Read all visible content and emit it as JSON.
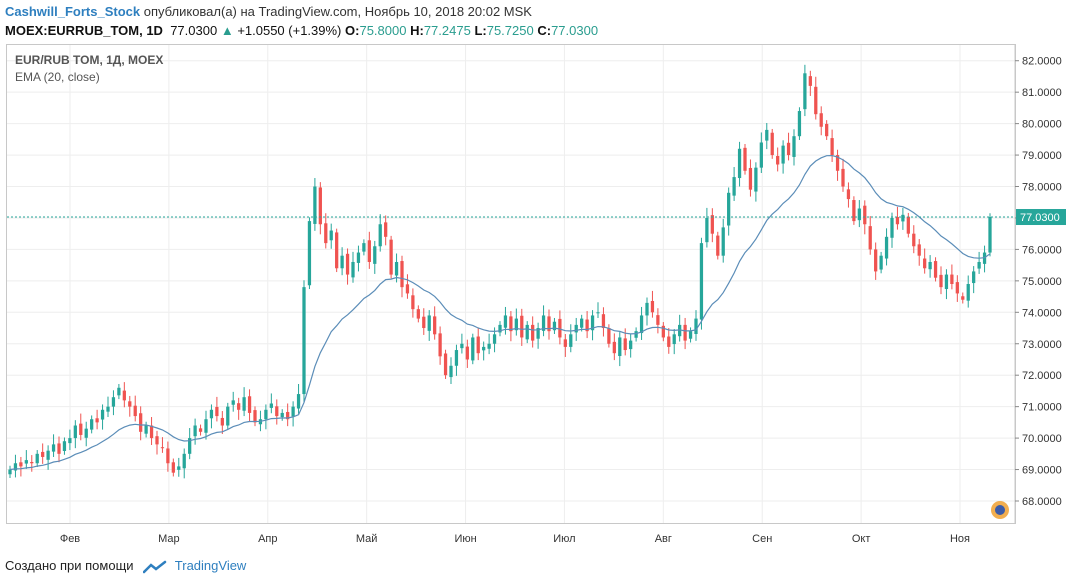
{
  "header": {
    "author": "Cashwill_Forts_Stock",
    "published": "опубликовал(а) на TradingView.com, Ноябрь 10, 2018 20:02 MSK",
    "symbol": "MOEX:EURRUB_TOM, 1D",
    "last": "77.0300",
    "change": "+1.0550 (+1.39%)",
    "o_label": "O:",
    "o_val": "75.8000",
    "h_label": "H:",
    "h_val": "77.2475",
    "l_label": "L:",
    "l_val": "75.7250",
    "c_label": "C:",
    "c_val": "77.0300"
  },
  "legend": {
    "series": "EUR/RUB TOM, 1Д, MOEX",
    "indicator": "EMA (20, close)"
  },
  "footer": {
    "created": "Создано при помощи",
    "brand": "TradingView"
  },
  "colors": {
    "up": "#26a69a",
    "down": "#ef5350",
    "ema": "#5b8db8",
    "last_line": "#26a69a"
  },
  "chart_data": {
    "type": "candlestick",
    "ylim": [
      67.3,
      82.5
    ],
    "y_ticks": [
      "68.0000",
      "69.0000",
      "70.0000",
      "71.0000",
      "72.0000",
      "73.0000",
      "74.0000",
      "75.0000",
      "76.0000",
      "77.0000",
      "78.0000",
      "79.0000",
      "80.0000",
      "81.0000",
      "82.0000"
    ],
    "x_ticks": [
      "Фев",
      "Мар",
      "Апр",
      "Май",
      "Июн",
      "Июл",
      "Авг",
      "Сен",
      "Окт",
      "Ноя"
    ],
    "last_price_label": "77.0300",
    "last_price": 77.03,
    "closes": [
      69.0,
      69.2,
      69.1,
      69.3,
      69.2,
      69.5,
      69.4,
      69.6,
      69.8,
      69.5,
      69.9,
      70.0,
      70.4,
      70.1,
      70.3,
      70.6,
      70.5,
      70.9,
      71.0,
      71.3,
      71.6,
      71.2,
      71.0,
      70.7,
      70.2,
      70.4,
      70.0,
      69.8,
      69.7,
      69.2,
      68.9,
      69.1,
      69.5,
      70.0,
      70.4,
      70.2,
      70.6,
      70.9,
      70.7,
      70.4,
      71.0,
      71.2,
      70.9,
      71.3,
      70.8,
      70.5,
      70.6,
      70.9,
      71.1,
      70.7,
      70.8,
      70.6,
      71.0,
      71.4,
      74.8,
      76.9,
      78.0,
      76.8,
      76.2,
      76.6,
      75.4,
      75.8,
      75.2,
      75.6,
      75.9,
      76.2,
      75.6,
      76.1,
      76.8,
      76.4,
      75.2,
      75.6,
      74.8,
      74.6,
      74.1,
      73.8,
      73.5,
      73.9,
      73.3,
      72.6,
      72.0,
      72.3,
      72.8,
      73.0,
      72.5,
      73.2,
      72.7,
      72.9,
      73.0,
      73.3,
      73.6,
      73.9,
      73.4,
      73.8,
      73.2,
      73.6,
      73.1,
      73.5,
      73.9,
      73.4,
      73.7,
      73.2,
      72.9,
      73.3,
      73.6,
      73.8,
      73.4,
      73.9,
      74.0,
      73.5,
      73.0,
      72.7,
      73.2,
      72.8,
      73.1,
      73.4,
      73.9,
      74.3,
      74.0,
      73.6,
      73.2,
      72.9,
      73.3,
      73.6,
      73.1,
      73.4,
      73.8,
      76.2,
      77.0,
      76.5,
      75.8,
      76.7,
      77.8,
      78.3,
      79.2,
      78.5,
      77.9,
      78.6,
      79.4,
      79.8,
      79.0,
      78.7,
      79.3,
      79.0,
      79.6,
      80.4,
      81.6,
      81.2,
      80.3,
      79.9,
      79.6,
      79.0,
      78.5,
      78.0,
      77.6,
      76.9,
      77.3,
      76.8,
      76.0,
      75.3,
      75.8,
      76.4,
      77.0,
      76.8,
      77.1,
      76.5,
      76.1,
      75.8,
      75.4,
      75.6,
      75.1,
      74.8,
      75.2,
      74.9,
      74.6,
      74.4,
      74.9,
      75.3,
      75.6,
      75.9,
      77.03
    ]
  }
}
